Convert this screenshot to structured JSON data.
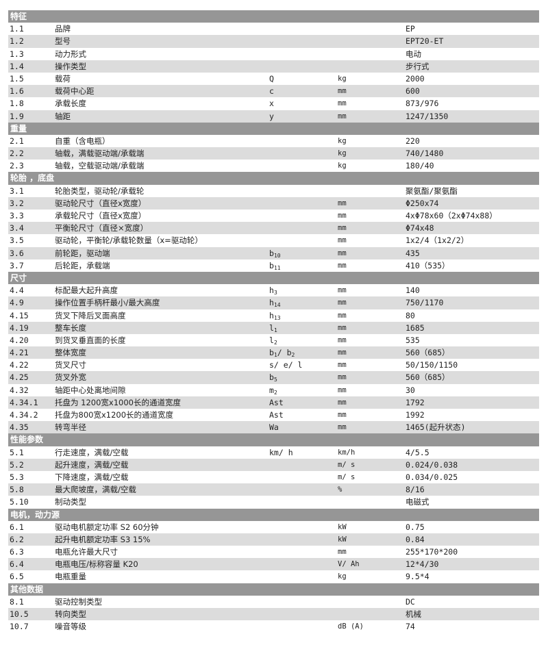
{
  "sections": [
    {
      "title": "特征",
      "rows": [
        {
          "no": "1.1",
          "name": "品牌",
          "sym": [],
          "unit": "",
          "value": "EP"
        },
        {
          "no": "1.2",
          "name": "型号",
          "sym": [],
          "unit": "",
          "value": "EPT20-ET"
        },
        {
          "no": "1.3",
          "name": "动力形式",
          "sym": [],
          "unit": "",
          "value": "电动"
        },
        {
          "no": "1.4",
          "name": "操作类型",
          "sym": [],
          "unit": "",
          "value": "步行式"
        },
        {
          "no": "1.5",
          "name": "载荷",
          "sym": [
            "Q"
          ],
          "unit": "kg",
          "value": "2000"
        },
        {
          "no": "1.6",
          "name": "载荷中心距",
          "sym": [
            "c"
          ],
          "unit": "mm",
          "value": "600"
        },
        {
          "no": "1.8",
          "name": "承载长度",
          "sym": [
            "x"
          ],
          "unit": "mm",
          "value": "873/976"
        },
        {
          "no": "1.9",
          "name": "轴距",
          "sym": [
            "y"
          ],
          "unit": "mm",
          "value": "1247/1350"
        }
      ]
    },
    {
      "title": "重量",
      "rows": [
        {
          "no": "2.1",
          "name": "自重（含电瓶）",
          "sym": [],
          "unit": "kg",
          "value": "220"
        },
        {
          "no": "2.2",
          "name": "轴载，满载驱动端/承载端",
          "sym": [],
          "unit": "kg",
          "value": "740/1480"
        },
        {
          "no": "2.3",
          "name": "轴载，空载驱动端/承载端",
          "sym": [],
          "unit": "kg",
          "value": "180/40"
        }
      ]
    },
    {
      "title": "轮胎 ，底盘",
      "rows": [
        {
          "no": "3.1",
          "name": "轮胎类型，驱动轮/承载轮",
          "sym": [],
          "unit": "",
          "value": "聚氨酯/聚氨酯"
        },
        {
          "no": "3.2",
          "name": "驱动轮尺寸（直径x宽度）",
          "sym": [],
          "unit": "mm",
          "value": "Φ250x74"
        },
        {
          "no": "3.3",
          "name": "承载轮尺寸（直径x宽度）",
          "sym": [],
          "unit": "mm",
          "value": "4xΦ78x60（2xΦ74x88）"
        },
        {
          "no": "3.4",
          "name": "平衡轮尺寸（直径×宽度）",
          "sym": [],
          "unit": "mm",
          "value": "Φ74x48"
        },
        {
          "no": "3.5",
          "name": "驱动轮，平衡轮/承载轮数量（x=驱动轮）",
          "sym": [],
          "unit": "mm",
          "value": "1x2/4（1x2/2）"
        },
        {
          "no": "3.6",
          "name": "前轮距，驱动端",
          "sym": [
            "b",
            "10"
          ],
          "unit": "mm",
          "value": "435"
        },
        {
          "no": "3.7",
          "name": "后轮距，承载端",
          "sym": [
            "b",
            "11"
          ],
          "unit": "mm",
          "value": "410（535）"
        }
      ]
    },
    {
      "title": "尺寸",
      "rows": [
        {
          "no": "4.4",
          "name": "标配最大起升高度",
          "sym": [
            "h",
            "3"
          ],
          "unit": "mm",
          "value": "140"
        },
        {
          "no": "4.9",
          "name": "操作位置手柄杆最小/最大高度",
          "sym": [
            "h",
            "14"
          ],
          "unit": "mm",
          "value": "750/1170"
        },
        {
          "no": "4.15",
          "name": "货叉下降后叉面高度",
          "sym": [
            "h",
            "13"
          ],
          "unit": "mm",
          "value": "80"
        },
        {
          "no": "4.19",
          "name": "整车长度",
          "sym": [
            "l",
            "1"
          ],
          "unit": "mm",
          "value": "1685"
        },
        {
          "no": "4.20",
          "name": "到货叉垂直面的长度",
          "sym": [
            "l",
            "2"
          ],
          "unit": "mm",
          "value": "535"
        },
        {
          "no": "4.21",
          "name": "整体宽度",
          "sym": [
            "b",
            "1",
            "/ b",
            "2"
          ],
          "unit": "mm",
          "value": "560（685）"
        },
        {
          "no": "4.22",
          "name": "货叉尺寸",
          "sym": [
            "s/ e/ l"
          ],
          "unit": "mm",
          "value": "50/150/1150"
        },
        {
          "no": "4.25",
          "name": "货叉外宽",
          "sym": [
            "b",
            "5"
          ],
          "unit": "mm",
          "value": "560（685）"
        },
        {
          "no": "4.32",
          "name": "轴距中心处离地间隙",
          "sym": [
            "m",
            "2"
          ],
          "unit": "mm",
          "value": "30"
        },
        {
          "no": "4.34.1",
          "name": "托盘为 1200宽x1000长的通道宽度",
          "sym": [
            "Ast"
          ],
          "unit": "mm",
          "value": "1792"
        },
        {
          "no": "4.34.2",
          "name": "托盘为800宽x1200长的通道宽度",
          "sym": [
            "Ast"
          ],
          "unit": "mm",
          "value": "1992"
        },
        {
          "no": "4.35",
          "name": "转弯半径",
          "sym": [
            "Wa"
          ],
          "unit": "mm",
          "value": "1465(起升状态)"
        }
      ]
    },
    {
      "title": "性能参数",
      "rows": [
        {
          "no": "5.1",
          "name": "行走速度，满载/空载",
          "sym": [
            "km/ h"
          ],
          "unit": "km/h",
          "value": "4/5.5"
        },
        {
          "no": "5.2",
          "name": "起升速度，满载/空载",
          "sym": [],
          "unit": "m/ s",
          "value": "0.024/0.038"
        },
        {
          "no": "5.3",
          "name": "下降速度，满载/空载",
          "sym": [],
          "unit": "m/ s",
          "value": "0.034/0.025"
        },
        {
          "no": "5.8",
          "name": "最大爬坡度，满载/空载",
          "sym": [],
          "unit": "%",
          "value": "8/16"
        },
        {
          "no": "5.10",
          "name": "制动类型",
          "sym": [],
          "unit": "",
          "value": "电磁式"
        }
      ]
    },
    {
      "title": "电机，动力源",
      "rows": [
        {
          "no": "6.1",
          "name": "驱动电机额定功率 S2 60分钟",
          "sym": [],
          "unit": "kW",
          "value": "0.75"
        },
        {
          "no": "6.2",
          "name": "起升电机额定功率 S3 15%",
          "sym": [],
          "unit": "kW",
          "value": "0.84"
        },
        {
          "no": "6.3",
          "name": "电瓶允许最大尺寸",
          "sym": [],
          "unit": "mm",
          "value": "255*170*200"
        },
        {
          "no": "6.4",
          "name": "电瓶电压/标称容量 K20",
          "sym": [],
          "unit": "V/ Ah",
          "value": "12*4/30"
        },
        {
          "no": "6.5",
          "name": "电瓶重量",
          "sym": [],
          "unit": "kg",
          "value": "9.5*4"
        }
      ]
    },
    {
      "title": "其他数据",
      "rows": [
        {
          "no": "8.1",
          "name": "驱动控制类型",
          "sym": [],
          "unit": "",
          "value": "DC"
        },
        {
          "no": "10.5",
          "name": "转向类型",
          "sym": [],
          "unit": "",
          "value": "机械"
        },
        {
          "no": "10.7",
          "name": "噪音等级",
          "sym": [],
          "unit": "dB (A)",
          "value": "74"
        }
      ]
    }
  ]
}
